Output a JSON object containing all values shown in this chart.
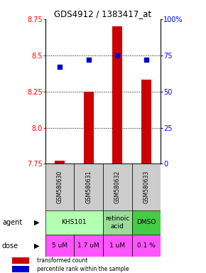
{
  "title": "GDS4912 / 1383417_at",
  "samples": [
    "GSM580630",
    "GSM580631",
    "GSM580632",
    "GSM580633"
  ],
  "bar_values": [
    7.77,
    8.25,
    8.7,
    8.33
  ],
  "dot_values": [
    67,
    72,
    75,
    72
  ],
  "ylim_left": [
    7.75,
    8.75
  ],
  "ylim_right": [
    0,
    100
  ],
  "yticks_left": [
    7.75,
    8.0,
    8.25,
    8.5,
    8.75
  ],
  "yticks_right": [
    0,
    25,
    50,
    75,
    100
  ],
  "ytick_labels_right": [
    "0",
    "25",
    "50",
    "75",
    "100%"
  ],
  "hlines": [
    8.0,
    8.25,
    8.5
  ],
  "bar_color": "#cc0000",
  "bar_bottom": 7.75,
  "dot_color": "#0000cc",
  "agent_groups": [
    [
      0,
      2,
      "KHS101",
      "#b3ffb3"
    ],
    [
      2,
      3,
      "retinoic\nacid",
      "#99dd99"
    ],
    [
      3,
      4,
      "DMSO",
      "#44cc44"
    ]
  ],
  "dose_labels": [
    "5 uM",
    "1.7 uM",
    "1 uM",
    "0.1 %"
  ],
  "dose_color": "#ff55ff",
  "sample_bg": "#cccccc",
  "legend_bar_color": "#cc0000",
  "legend_dot_color": "#0000cc",
  "legend_bar_text": "transformed count",
  "legend_dot_text": "percentile rank within the sample"
}
